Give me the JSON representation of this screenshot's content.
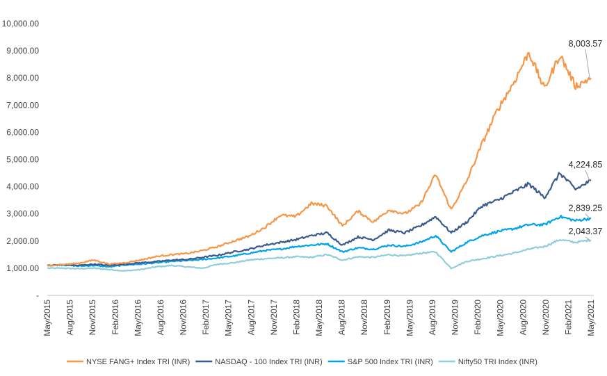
{
  "chart_data": {
    "type": "line",
    "title": "",
    "xlabel": "",
    "ylabel": "",
    "ylim": [
      0,
      10000
    ],
    "yticks": [
      "-",
      "1,000.00",
      "2,000.00",
      "3,000.00",
      "4,000.00",
      "5,000.00",
      "6,000.00",
      "7,000.00",
      "8,000.00",
      "9,000.00",
      "10,000.00"
    ],
    "xticks": [
      "May/2015",
      "Aug/2015",
      "Nov/2015",
      "Feb/2016",
      "May/2016",
      "Aug/2016",
      "Nov/2016",
      "Feb/2017",
      "May/2017",
      "Aug/2017",
      "Nov/2017",
      "Feb/2018",
      "May/2018",
      "Aug/2018",
      "Nov/2018",
      "Feb/2019",
      "May/2019",
      "Aug/2019",
      "Nov/2019",
      "Feb/2020",
      "May/2020",
      "Aug/2020",
      "Nov/2020",
      "Feb/2021",
      "May/2021"
    ],
    "grid": false,
    "legend_position": "bottom",
    "series": [
      {
        "name": "NYSE FANG+ Index TRI (INR)",
        "color": "#F79646",
        "end_label": "8,003.57",
        "values": [
          1100,
          1130,
          1180,
          1300,
          1150,
          1200,
          1300,
          1430,
          1500,
          1540,
          1650,
          1800,
          2000,
          2180,
          2500,
          2950,
          2900,
          3380,
          3300,
          2550,
          3100,
          2700,
          3150,
          3000,
          3350,
          4450,
          3150,
          4200,
          5600,
          6850,
          7800,
          8950,
          7600,
          8850,
          7700,
          8000
        ]
      },
      {
        "name": "NASDAQ - 100 Index TRI (INR)",
        "color": "#3A5A8C",
        "end_label": "4,224.85",
        "values": [
          1100,
          1130,
          1100,
          1150,
          1100,
          1150,
          1200,
          1240,
          1300,
          1320,
          1400,
          1480,
          1600,
          1700,
          1850,
          1950,
          2050,
          2200,
          2300,
          1850,
          2150,
          2050,
          2400,
          2300,
          2550,
          2900,
          2300,
          2700,
          3300,
          3500,
          3800,
          4100,
          3600,
          4500,
          3900,
          4225
        ]
      },
      {
        "name": "S&P 500 Index TRI (INR)",
        "color": "#00A2E8",
        "end_label": "2,839.25",
        "values": [
          1100,
          1120,
          1080,
          1100,
          1050,
          1120,
          1150,
          1200,
          1250,
          1280,
          1320,
          1380,
          1450,
          1550,
          1650,
          1700,
          1800,
          1850,
          1900,
          1600,
          1750,
          1700,
          1850,
          1800,
          1950,
          2200,
          1600,
          1950,
          2200,
          2350,
          2450,
          2600,
          2600,
          2900,
          2750,
          2839
        ]
      },
      {
        "name": "Nifty50 TRI Index (INR)",
        "color": "#92CDDC",
        "end_label": "2,043.37",
        "values": [
          1000,
          1000,
          980,
          1000,
          950,
          900,
          950,
          1050,
          1100,
          1050,
          1000,
          1150,
          1200,
          1300,
          1350,
          1380,
          1420,
          1400,
          1500,
          1300,
          1420,
          1400,
          1500,
          1450,
          1550,
          1600,
          1000,
          1250,
          1350,
          1450,
          1550,
          1700,
          1800,
          2050,
          1950,
          2043
        ]
      }
    ]
  }
}
